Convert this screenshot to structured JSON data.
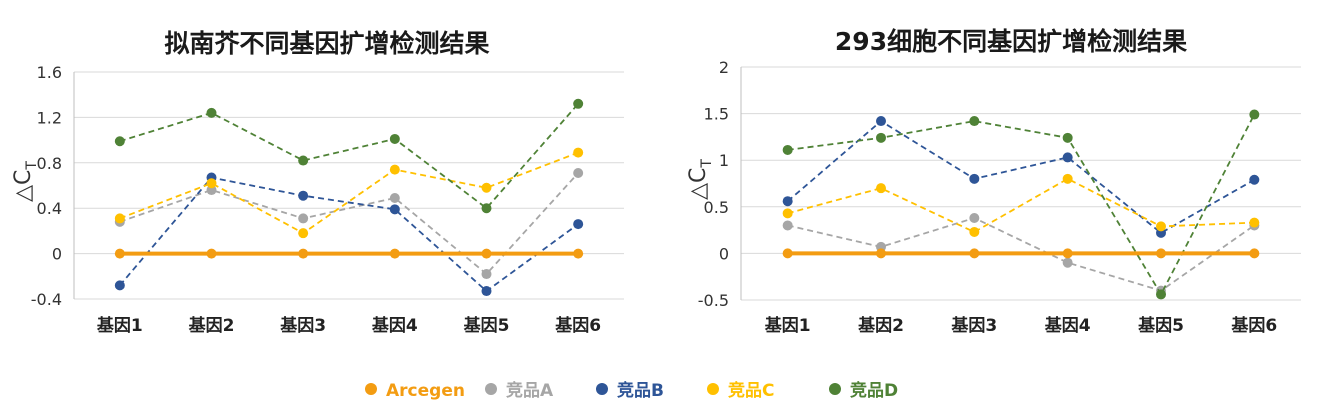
{
  "chart_data": [
    {
      "type": "line",
      "title": "拟南芥不同基因扩增检测结果",
      "ylabel": "△C",
      "ylabel_sub": "T",
      "categories": [
        "基因1",
        "基因2",
        "基因3",
        "基因4",
        "基因5",
        "基因6"
      ],
      "ylim": [
        -0.4,
        1.6
      ],
      "yticks": [
        -0.4,
        0,
        0.4,
        0.8,
        1.2,
        1.6
      ],
      "ytick_labels": [
        "-0.4",
        "0",
        "0.4",
        "0.8",
        "1.2",
        "1.6"
      ],
      "grid": true,
      "series": [
        {
          "name": "Arcegen",
          "values": [
            0,
            0,
            0,
            0,
            0,
            0
          ]
        },
        {
          "name": "竞品A",
          "values": [
            0.28,
            0.56,
            0.31,
            0.49,
            -0.18,
            0.71
          ]
        },
        {
          "name": "竞品B",
          "values": [
            -0.28,
            0.67,
            0.51,
            0.39,
            -0.33,
            0.26
          ]
        },
        {
          "name": "竞品C",
          "values": [
            0.31,
            0.62,
            0.18,
            0.74,
            0.58,
            0.89
          ]
        },
        {
          "name": "竞品D",
          "values": [
            0.99,
            1.24,
            0.82,
            1.01,
            0.4,
            1.32
          ]
        }
      ]
    },
    {
      "type": "line",
      "title": "293细胞不同基因扩增检测结果",
      "ylabel": "△C",
      "ylabel_sub": "T",
      "categories": [
        "基因1",
        "基因2",
        "基因3",
        "基因4",
        "基因5",
        "基因6"
      ],
      "ylim": [
        -0.5,
        2
      ],
      "yticks": [
        -0.5,
        0,
        0.5,
        1,
        1.5,
        2
      ],
      "ytick_labels": [
        "-0.5",
        "0",
        "0.5",
        "1",
        "1.5",
        "2"
      ],
      "grid": true,
      "series": [
        {
          "name": "Arcegen",
          "values": [
            0,
            0,
            0,
            0,
            0,
            0
          ]
        },
        {
          "name": "竞品A",
          "values": [
            0.3,
            0.07,
            0.38,
            -0.1,
            -0.4,
            0.3
          ]
        },
        {
          "name": "竞品B",
          "values": [
            0.56,
            1.42,
            0.8,
            1.03,
            0.22,
            0.79
          ]
        },
        {
          "name": "竞品C",
          "values": [
            0.43,
            0.7,
            0.23,
            0.8,
            0.29,
            0.33
          ]
        },
        {
          "name": "竞品D",
          "values": [
            1.11,
            1.24,
            1.42,
            1.24,
            -0.44,
            1.49
          ]
        }
      ]
    }
  ],
  "legend": {
    "placement": "bottom",
    "items": [
      {
        "name": "Arcegen",
        "color": "#F39C12"
      },
      {
        "name": "竞品A",
        "color": "#A6A6A6"
      },
      {
        "name": "竞品B",
        "color": "#2E5597"
      },
      {
        "name": "竞品C",
        "color": "#FFC000"
      },
      {
        "name": "竞品D",
        "color": "#4F8236"
      }
    ]
  }
}
